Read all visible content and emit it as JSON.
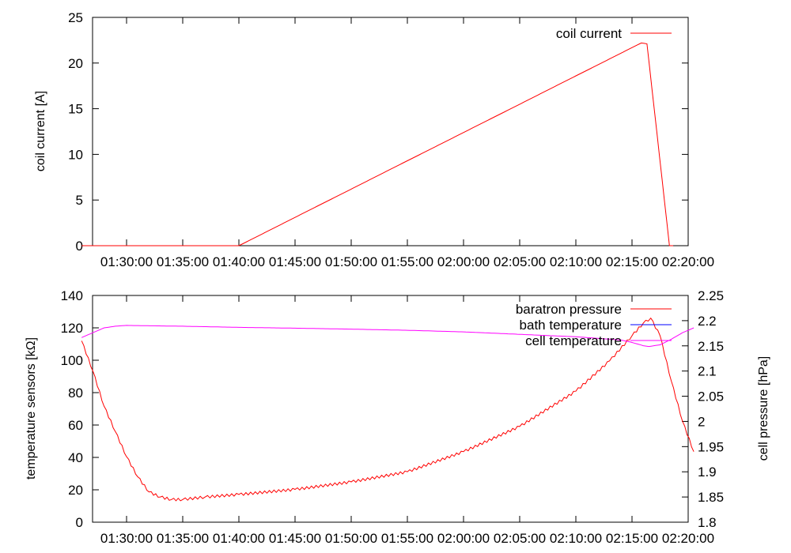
{
  "chart_data": [
    {
      "type": "line",
      "ylabel": "coil current [A]",
      "ylim": [
        0,
        25
      ],
      "yticks": [
        "0",
        "5",
        "10",
        "15",
        "20",
        "25"
      ],
      "xticks": [
        "01:30:00",
        "01:35:00",
        "01:40:00",
        "01:45:00",
        "01:50:00",
        "01:55:00",
        "02:00:00",
        "02:05:00",
        "02:10:00",
        "02:15:00",
        "02:20:00"
      ],
      "legend_position": "top-right",
      "series": [
        {
          "name": "coil current",
          "color": "#ff0000",
          "x": [
            "01:26:00",
            "01:39:20",
            "01:40:00",
            "02:15:30",
            "02:15:50",
            "02:16:20",
            "02:18:20",
            "02:18:40"
          ],
          "y": [
            0,
            0,
            0,
            22,
            22.2,
            22.1,
            0,
            0
          ]
        }
      ]
    },
    {
      "type": "line",
      "ylabel": "temperature sensors [kΩ]",
      "ylabel_right": "cell pressure [hPa]",
      "ylim": [
        0,
        140
      ],
      "ylim_right": [
        1.8,
        2.25
      ],
      "yticks": [
        "0",
        "20",
        "40",
        "60",
        "80",
        "100",
        "120",
        "140"
      ],
      "yticks_right": [
        "1.8",
        "1.85",
        "1.9",
        "1.95",
        "2",
        "2.05",
        "2.1",
        "2.15",
        "2.2",
        "2.25"
      ],
      "xticks": [
        "01:30:00",
        "01:35:00",
        "01:40:00",
        "01:45:00",
        "01:50:00",
        "01:55:00",
        "02:00:00",
        "02:05:00",
        "02:10:00",
        "02:15:00",
        "02:20:00"
      ],
      "legend_position": "top-right",
      "series": [
        {
          "name": "baratron pressure",
          "color": "#ff0000",
          "axis": "right",
          "x": [
            "01:26:00",
            "01:27:00",
            "01:28:00",
            "01:29:00",
            "01:30:00",
            "01:31:00",
            "01:32:00",
            "01:33:00",
            "01:34:00",
            "01:35:00",
            "01:37:00",
            "01:40:00",
            "01:45:00",
            "01:50:00",
            "01:55:00",
            "02:00:00",
            "02:05:00",
            "02:10:00",
            "02:13:00",
            "02:15:00",
            "02:16:00",
            "02:16:40",
            "02:17:30",
            "02:18:30",
            "02:19:30",
            "02:20:30"
          ],
          "y": [
            2.16,
            2.1,
            2.03,
            1.98,
            1.93,
            1.89,
            1.86,
            1.85,
            1.845,
            1.845,
            1.85,
            1.855,
            1.865,
            1.88,
            1.9,
            1.94,
            1.99,
            2.06,
            2.12,
            2.17,
            2.195,
            2.205,
            2.17,
            2.08,
            2.0,
            1.94
          ]
        },
        {
          "name": "bath temperature",
          "color": "#0000ff",
          "axis": "left",
          "x": [],
          "y": []
        },
        {
          "name": "cell temperature",
          "color": "#ff00ff",
          "axis": "left",
          "x": [
            "01:26:00",
            "01:27:00",
            "01:28:00",
            "01:29:00",
            "01:30:00",
            "01:35:00",
            "01:40:00",
            "01:45:00",
            "01:50:00",
            "01:55:00",
            "02:00:00",
            "02:05:00",
            "02:10:00",
            "02:14:00",
            "02:15:00",
            "02:16:00",
            "02:16:30",
            "02:17:30",
            "02:18:30",
            "02:19:30",
            "02:20:30"
          ],
          "y": [
            114,
            117,
            120,
            121,
            121.5,
            121,
            120.3,
            119.8,
            119.2,
            118.5,
            117.5,
            116,
            114.5,
            112.5,
            111,
            109,
            108.5,
            109.5,
            113,
            117,
            120
          ]
        }
      ]
    }
  ]
}
